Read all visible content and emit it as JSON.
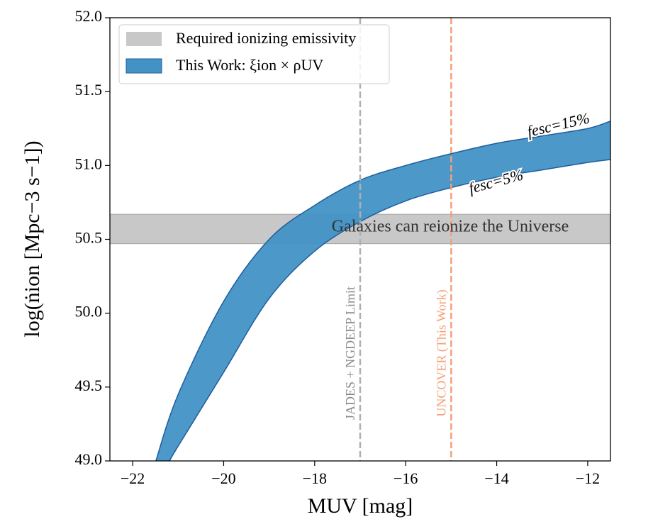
{
  "chart_data": {
    "type": "band",
    "xlabel": "MUV [mag]",
    "ylabel": "log(ṅion [Mpc−3 s−1])",
    "xlim": [
      -22.5,
      -11.5
    ],
    "ylim": [
      49,
      52
    ],
    "xticks": [
      {
        "value": -22,
        "label": "−22"
      },
      {
        "value": -20,
        "label": "−20"
      },
      {
        "value": -18,
        "label": "−18"
      },
      {
        "value": -16,
        "label": "−16"
      },
      {
        "value": -14,
        "label": "−14"
      },
      {
        "value": -12,
        "label": "−12"
      }
    ],
    "yticks": [
      {
        "value": 49,
        "label": "49.0"
      },
      49.5,
      {
        "value": 50,
        "label": "50.0"
      },
      50.5,
      {
        "value": 51,
        "label": "51.0"
      },
      51.5,
      {
        "value": 52,
        "label": "52.0"
      }
    ],
    "band": {
      "name": "This Work: ξion × ρUV",
      "color": "#4292c6",
      "edge_color": "#1f5d9c"
    },
    "series": [
      {
        "name": "fesc=15%",
        "x": [
          -21.49,
          -21,
          -20,
          -19,
          -18,
          -17,
          -16,
          -15,
          -14,
          -13,
          -12,
          -11.5
        ],
        "values": [
          49.0,
          49.45,
          50.08,
          50.5,
          50.73,
          50.9,
          51.0,
          51.08,
          51.15,
          51.2,
          51.25,
          51.3
        ]
      },
      {
        "name": "fesc=5%",
        "x": [
          -21.19,
          -21,
          -20,
          -19,
          -18,
          -17,
          -16,
          -15,
          -14,
          -13,
          -12,
          -11.5
        ],
        "values": [
          49.0,
          49.1,
          49.6,
          50.1,
          50.42,
          50.62,
          50.76,
          50.85,
          50.92,
          50.97,
          51.02,
          51.04
        ]
      }
    ],
    "span": {
      "name": "Required ionizing emissivity",
      "y": [
        50.47,
        50.67
      ],
      "color": "#c8c8c8",
      "label": "Galaxies can reionize the Universe"
    },
    "vlines": [
      {
        "x": -17,
        "label": "JADES + NGDEEP Limit",
        "color": "#b0b0b0"
      },
      {
        "x": -15,
        "label": "UNCOVER (This Work)",
        "color": "#f4a07a"
      }
    ],
    "legend": "upper left"
  }
}
